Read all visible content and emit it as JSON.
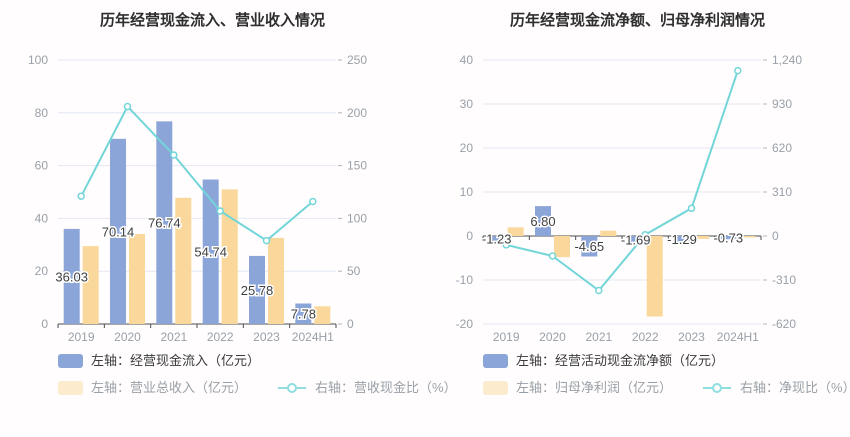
{
  "style": {
    "background": "#fffdfd",
    "grid_color": "#e4e8f4",
    "axis_color": "#4d4d4d",
    "tick_color": "#b3b7c0",
    "tick_label_color": "#9aa0a8",
    "data_label_color": "#3f3f3f",
    "title_color": "#2e2e2e",
    "bar_blue": "#8ca5d9",
    "bar_yellow": "#fad89b",
    "line_teal": "#72d5d8"
  },
  "chart_data": [
    {
      "type": "combo",
      "title": "历年经营现金流入、营业收入情况",
      "categories": [
        "2019",
        "2020",
        "2021",
        "2022",
        "2023",
        "2024H1"
      ],
      "series": [
        {
          "name": "左轴：经营现金流入（亿元）",
          "type": "bar",
          "axis": "left",
          "color": "#8ca5d9",
          "legend_color": "#8ca5d9",
          "values": [
            36.03,
            70.14,
            76.74,
            54.74,
            25.78,
            7.78
          ],
          "labels": true
        },
        {
          "name": "左轴：营业总收入（亿元）",
          "type": "bar",
          "axis": "left",
          "color": "#fad89b",
          "legend_color": "#fcebcd",
          "values": [
            29.5,
            34.1,
            47.8,
            51.0,
            32.6,
            6.7
          ],
          "labels": false
        },
        {
          "name": "右轴：营收现金比（%）",
          "type": "line",
          "axis": "right",
          "color": "#72d5d8",
          "legend_color": "#8fdee0",
          "values": [
            121,
            206,
            160,
            107,
            79,
            116
          ]
        }
      ],
      "left_axis": {
        "min": 0,
        "max": 100,
        "ticks": [
          0,
          20,
          40,
          60,
          80,
          100
        ]
      },
      "right_axis": {
        "min": 0,
        "max": 250,
        "ticks": [
          0,
          50,
          100,
          150,
          200,
          250
        ]
      },
      "grid": true,
      "legend_position": "bottom-left"
    },
    {
      "type": "combo",
      "title": "历年经营现金流净额、归母净利润情况",
      "categories": [
        "2019",
        "2020",
        "2021",
        "2022",
        "2023",
        "2024H1"
      ],
      "series": [
        {
          "name": "左轴：经营活动现金流净额（亿元）",
          "type": "bar",
          "axis": "left",
          "color": "#8ca5d9",
          "legend_color": "#8ca5d9",
          "values": [
            -1.23,
            6.8,
            -4.65,
            -1.69,
            -1.29,
            -0.73
          ],
          "labels": true
        },
        {
          "name": "左轴：归母净利润（亿元）",
          "type": "bar",
          "axis": "left",
          "color": "#fad89b",
          "legend_color": "#fcebcd",
          "values": [
            1.96,
            -4.8,
            1.21,
            -18.3,
            -0.66,
            -0.06
          ],
          "labels": false
        },
        {
          "name": "右轴：净现比（%）",
          "type": "line",
          "axis": "right",
          "color": "#72d5d8",
          "legend_color": "#8fdee0",
          "values": [
            -63,
            -141,
            -384,
            9,
            195,
            1165
          ]
        }
      ],
      "left_axis": {
        "min": -20,
        "max": 40,
        "ticks": [
          -20,
          -10,
          0,
          10,
          20,
          30,
          40
        ]
      },
      "right_axis": {
        "min": -620,
        "max": 1240,
        "ticks": [
          -620,
          -310,
          0,
          310,
          620,
          930,
          1240
        ]
      },
      "grid": true,
      "legend_position": "bottom-left"
    }
  ]
}
